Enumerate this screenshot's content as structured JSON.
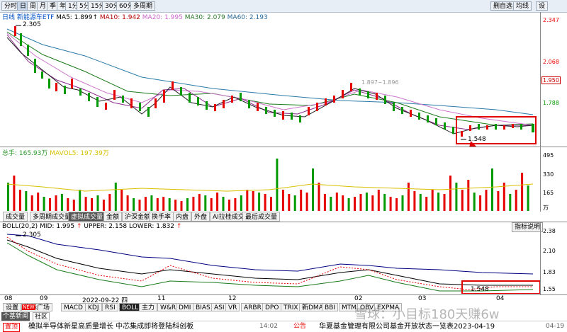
{
  "toolbar": {
    "left": [
      "分时",
      "日",
      "周",
      "月",
      "季",
      "年",
      "1分",
      "5分",
      "15分",
      "30分",
      "60分",
      "多周期"
    ],
    "right": [
      "删自选",
      "均线",
      "设"
    ]
  },
  "main_info": {
    "label": "日线",
    "name": "新能源车ETF",
    "ma5": "MA5: 1.899↑",
    "ma10": "MA10: 1.942",
    "ma20": "MA20: 1.995",
    "ma30": "MA30: 2.079",
    "ma60": "MA60: 2.193"
  },
  "main_axis": [
    "2.347",
    "2.068",
    "1.950",
    "1.788"
  ],
  "annotations": {
    "high": "2.305",
    "low": "1.548",
    "mid_range": "1.897~1.896",
    "boll_low": "1.548"
  },
  "vol_info": {
    "vol": "总手: 165.93万",
    "mavol": "MAVOL5: 197.39万"
  },
  "vol_axis": [
    "495",
    "330",
    "165",
    "万"
  ],
  "indicator_tabs": [
    "成交量",
    "多周期成交量",
    "虚拟成交量",
    "金额",
    "沪深金额",
    "换手率",
    "内盘",
    "外盘",
    "AI拉桂成交量",
    "最后成交量"
  ],
  "boll_info": {
    "label": "BOLL(20,2)",
    "mid": "MID: 1.995",
    "upper": "UPPER: 2.158",
    "lower": "LOWER: 1.832",
    "up_arrow": "↑",
    "mid_arrow": "↑",
    "help": "指标说明"
  },
  "boll_axis": [
    "2.38",
    "2.10",
    "1.83",
    "1.55"
  ],
  "boll_high": "2.305",
  "time_axis": [
    "08",
    "09",
    "2022-09-22 四",
    "11",
    "12",
    "02",
    "03",
    "04"
  ],
  "bottom_tabs": [
    "设置",
    "指标广场",
    "MACD",
    "KDJ",
    "RSI",
    "BOLL",
    "主力",
    "W&R",
    "DMI",
    "BIAS",
    "ASI",
    "VR",
    "ARBR",
    "DPO",
    "TRIX",
    "新DMA",
    "BBI",
    "MTM",
    "OBV",
    "EXPMA"
  ],
  "side_tabs": [
    "个基新闻",
    "社区"
  ],
  "news": {
    "left_tag": "置顶",
    "new_badge": "NEW",
    "left_text": "模拟半导体新星高质量增长 中芯集成即将登陆科创板",
    "left_time": "14:02",
    "right_tag": "公告",
    "right_text": "华夏基金管理有限公司基金开放状态一览表2023-04-19",
    "right_time": "04-19"
  },
  "watermark": "雪球：小目标180天赚6w",
  "colors": {
    "up": "#e60000",
    "down": "#009900",
    "ma5": "#222222",
    "ma10": "#e8b4e8",
    "ma20": "#8a2a8a",
    "ma30": "#1a7a1a",
    "ma60": "#2a7aa8",
    "highlight": "#e00000"
  },
  "chart_data": {
    "type": "line",
    "title": "新能源车ETF",
    "ylim": [
      1.5,
      2.347
    ],
    "series": [
      {
        "name": "MA60",
        "values": [
          2.3,
          2.2,
          2.12,
          2.05,
          2.0,
          1.97,
          1.95,
          1.9,
          1.85,
          1.8,
          1.78
        ]
      },
      {
        "name": "MA30",
        "values": [
          2.25,
          2.1,
          2.0,
          1.93,
          1.9,
          1.88,
          1.85,
          1.86,
          1.8,
          1.75,
          1.72
        ]
      }
    ]
  }
}
